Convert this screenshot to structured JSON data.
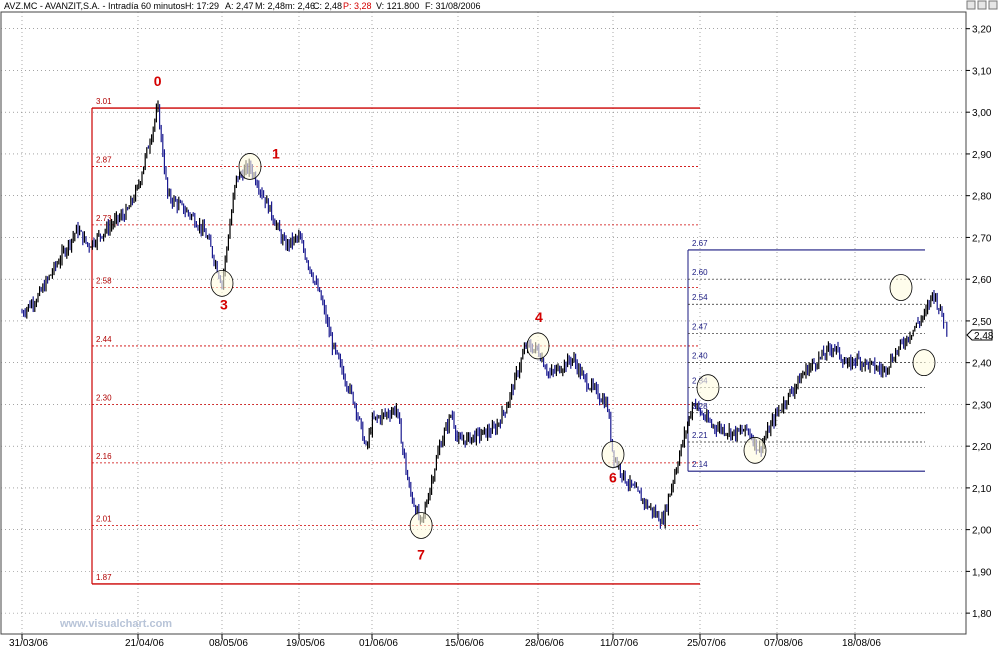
{
  "header": {
    "symbol": "AVZ.MC - AVANZIT,S.A. - Intradía 60 minutos",
    "high": "H: 17:29",
    "open": "A: 2,47",
    "max": "M: 2,48",
    "min": "m: 2,46",
    "close": "C: 2,48",
    "pct": "P: 3,28",
    "volume": "V: 121.800",
    "date": "F: 31/08/2006"
  },
  "watermark": "www.visualchart.com",
  "current_price_label": "2,48",
  "colors": {
    "fib_red": "#cc0000",
    "fib_blue": "#1a1a80",
    "up_bar": "#000000",
    "down_bar": "#1a1a90",
    "wave_label": "#d40000",
    "grid": "#6e6e6e"
  },
  "chart_data": {
    "type": "line",
    "ylim": [
      1.75,
      3.24
    ],
    "yticks": [
      "1,80",
      "1,90",
      "2,00",
      "2,10",
      "2,20",
      "2,30",
      "2,40",
      "2,50",
      "2,60",
      "2,70",
      "2,80",
      "2,90",
      "3,00",
      "3,10",
      "3,20"
    ],
    "ytick_values": [
      1.8,
      1.9,
      2.0,
      2.1,
      2.2,
      2.3,
      2.4,
      2.5,
      2.6,
      2.7,
      2.8,
      2.9,
      3.0,
      3.1,
      3.2
    ],
    "xticks": [
      "31/03/06",
      "21/04/06",
      "08/05/06",
      "19/05/06",
      "01/06/06",
      "15/06/06",
      "28/06/06",
      "11/07/06",
      "25/07/06",
      "07/08/06",
      "18/08/06"
    ],
    "series": [
      {
        "x": [
          "31/03/06",
          "03/04/06",
          "06/04/06",
          "10/04/06",
          "12/04/06",
          "17/04/06",
          "19/04/06",
          "21/04/06",
          "25/04/06",
          "27/04/06",
          "02/05/06",
          "04/05/06",
          "05/05/06",
          "08/05/06",
          "10/05/06",
          "12/05/06",
          "15/05/06",
          "17/05/06",
          "19/05/06",
          "23/05/06",
          "25/05/06",
          "29/05/06",
          "31/05/06",
          "01/06/06",
          "05/06/06",
          "07/06/06",
          "09/06/06",
          "12/06/06",
          "14/06/06",
          "15/06/06",
          "19/06/06",
          "21/06/06",
          "23/06/06",
          "26/06/06",
          "28/06/06",
          "30/06/06",
          "04/07/06",
          "06/07/06",
          "10/07/06",
          "11/07/06",
          "13/07/06",
          "17/07/06",
          "19/07/06",
          "21/07/06",
          "24/07/06",
          "25/07/06",
          "27/07/06",
          "31/07/06",
          "02/08/06",
          "04/08/06",
          "07/08/06",
          "09/08/06",
          "11/08/06",
          "15/08/06",
          "17/08/06",
          "18/08/06",
          "22/08/06",
          "24/08/06",
          "28/08/06",
          "29/08/06",
          "31/08/06"
        ],
        "values": [
          2.52,
          2.56,
          2.63,
          2.72,
          2.68,
          2.74,
          2.76,
          2.82,
          3.01,
          2.8,
          2.75,
          2.72,
          2.7,
          2.59,
          2.84,
          2.87,
          2.76,
          2.68,
          2.7,
          2.55,
          2.44,
          2.3,
          2.19,
          2.26,
          2.29,
          2.1,
          2.01,
          2.2,
          2.28,
          2.21,
          2.23,
          2.24,
          2.3,
          2.44,
          2.43,
          2.37,
          2.41,
          2.36,
          2.3,
          2.18,
          2.12,
          2.05,
          2.02,
          2.14,
          2.31,
          2.28,
          2.25,
          2.23,
          2.24,
          2.19,
          2.28,
          2.33,
          2.38,
          2.44,
          2.39,
          2.41,
          2.38,
          2.43,
          2.52,
          2.57,
          2.48
        ]
      }
    ],
    "fib_retracement_1": {
      "levels": [
        3.01,
        2.87,
        2.73,
        2.58,
        2.44,
        2.3,
        2.16,
        2.01,
        1.87
      ],
      "labels": [
        "3.01",
        "2.87",
        "2.73",
        "2.58",
        "2.44",
        "2.30",
        "2.16",
        "2.01",
        "1.87"
      ]
    },
    "fib_retracement_2": {
      "levels": [
        2.67,
        2.6,
        2.54,
        2.47,
        2.4,
        2.34,
        2.28,
        2.21,
        2.14
      ],
      "labels": [
        "2.67",
        "2.60",
        "2.54",
        "2.47",
        "2.40",
        "2.34",
        "2.28",
        "2.21",
        "2.14"
      ]
    },
    "wave_labels": [
      {
        "text": "0",
        "date": "25/04/06",
        "price": 3.01
      },
      {
        "text": "1",
        "date": "12/05/06",
        "price": 2.87
      },
      {
        "text": "3",
        "date": "08/05/06",
        "price": 2.59
      },
      {
        "text": "4",
        "date": "28/06/06",
        "price": 2.44
      },
      {
        "text": "6",
        "date": "11/07/06",
        "price": 2.18
      },
      {
        "text": "7",
        "date": "09/06/06",
        "price": 2.01
      }
    ]
  }
}
